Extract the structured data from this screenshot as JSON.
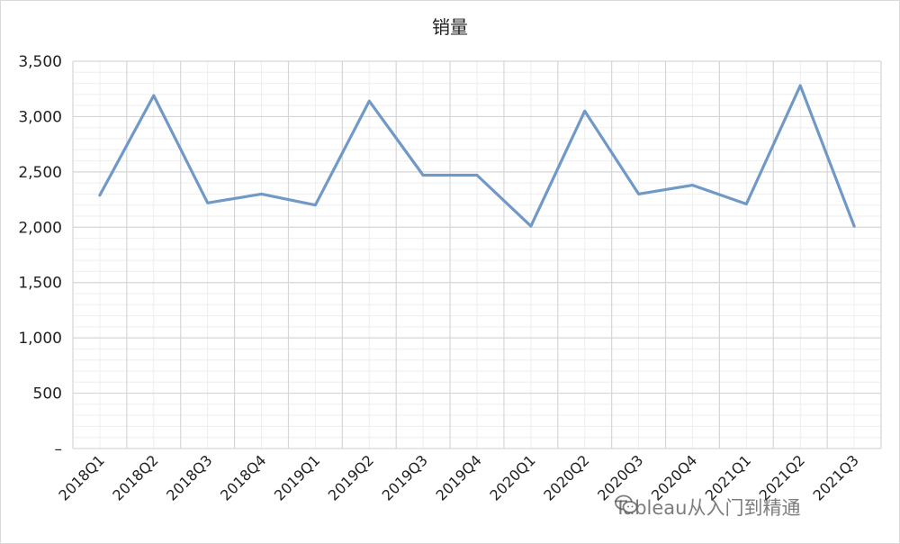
{
  "chart_data": {
    "type": "line",
    "title": "销量",
    "categories": [
      "2018Q1",
      "2018Q2",
      "2018Q3",
      "2018Q4",
      "2019Q1",
      "2019Q2",
      "2019Q3",
      "2019Q4",
      "2020Q1",
      "2020Q2",
      "2020Q3",
      "2020Q4",
      "2021Q1",
      "2021Q2",
      "2021Q3"
    ],
    "series": [
      {
        "values": [
          2290,
          3190,
          2220,
          2300,
          2200,
          3140,
          2470,
          2470,
          2010,
          3050,
          2300,
          2380,
          2210,
          3280,
          2010
        ]
      }
    ],
    "ylim": [
      0,
      3500
    ],
    "yticks": [
      0,
      500,
      1000,
      1500,
      2000,
      2500,
      3000,
      3500
    ],
    "ytick_labels": [
      "–",
      "500",
      "1,000",
      "1,500",
      "2,000",
      "2,500",
      "3,000",
      "3,500"
    ],
    "grid": true,
    "legend": "none",
    "line_color": "#7099c8"
  },
  "watermark": {
    "text": "Tableau从入门到精通",
    "icon": "wechat-icon"
  }
}
